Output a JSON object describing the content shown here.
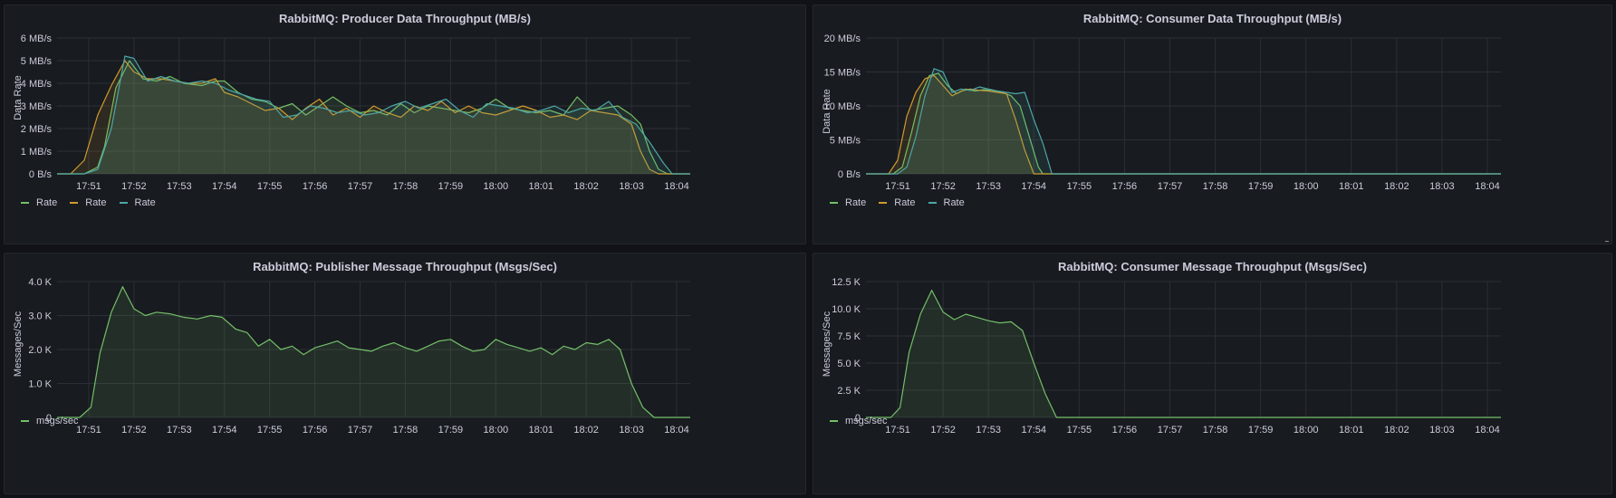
{
  "colors": {
    "green": "#73bf69",
    "orange": "#cf9a2e",
    "teal": "#4ca6a6",
    "grid": "#2c2f36"
  },
  "panels": [
    {
      "title": "RabbitMQ: Producer Data Throughput (MB/s)",
      "legend": [
        {
          "label": "Rate",
          "color": "#73bf69"
        },
        {
          "label": "Rate",
          "color": "#cf9a2e"
        },
        {
          "label": "Rate",
          "color": "#4ca6a6"
        }
      ]
    },
    {
      "title": "RabbitMQ: Consumer Data Throughput (MB/s)",
      "legend": [
        {
          "label": "Rate",
          "color": "#73bf69"
        },
        {
          "label": "Rate",
          "color": "#cf9a2e"
        },
        {
          "label": "Rate",
          "color": "#4ca6a6"
        }
      ]
    },
    {
      "title": "RabbitMQ: Publisher Message Throughput (Msgs/Sec)",
      "legend": [
        {
          "label": "msgs/sec",
          "color": "#73bf69"
        }
      ]
    },
    {
      "title": "RabbitMQ: Consumer Message Throughput (Msgs/Sec)",
      "legend": [
        {
          "label": "msgs/sec",
          "color": "#73bf69"
        }
      ]
    }
  ],
  "chart_data": [
    {
      "type": "area",
      "title": "RabbitMQ: Producer Data Throughput (MB/s)",
      "ylabel": "Data Rate",
      "x_unit": "minutes",
      "x_range": [
        17.8,
        18.07
      ],
      "x_ticks": [
        "17:51",
        "17:52",
        "17:53",
        "17:54",
        "17:55",
        "17:56",
        "17:57",
        "17:58",
        "17:59",
        "18:00",
        "18:01",
        "18:02",
        "18:03",
        "18:04"
      ],
      "x_tick_values": [
        1,
        2,
        3,
        4,
        5,
        6,
        7,
        8,
        9,
        10,
        11,
        12,
        13,
        14
      ],
      "y_ticks": [
        "0 B/s",
        "1 MB/s",
        "2 MB/s",
        "3 MB/s",
        "4 MB/s",
        "5 MB/s",
        "6 MB/s"
      ],
      "y_tick_values": [
        0,
        1,
        2,
        3,
        4,
        5,
        6
      ],
      "ylim": [
        0,
        6
      ],
      "xlim": [
        0.3,
        14.3
      ],
      "grid": true,
      "legend_position": "bottom-left",
      "series": [
        {
          "name": "Rate",
          "color": "#73bf69",
          "x": [
            0.3,
            0.9,
            1.2,
            1.35,
            1.6,
            1.9,
            2.2,
            2.5,
            2.8,
            3.1,
            3.5,
            3.8,
            4.0,
            4.3,
            4.6,
            4.9,
            5.2,
            5.5,
            5.8,
            6.1,
            6.4,
            6.7,
            7.0,
            7.3,
            7.6,
            7.9,
            8.2,
            8.5,
            8.8,
            9.1,
            9.4,
            9.7,
            10.0,
            10.3,
            10.6,
            10.9,
            11.2,
            11.5,
            11.8,
            12.1,
            12.4,
            12.7,
            13.0,
            13.2,
            13.4,
            13.6,
            13.8,
            14.3
          ],
          "y": [
            0,
            0,
            0.3,
            1.2,
            3.8,
            5.0,
            4.2,
            4.1,
            4.3,
            4.0,
            3.9,
            4.1,
            4.1,
            3.6,
            3.3,
            3.2,
            2.9,
            3.1,
            2.6,
            3.0,
            3.4,
            3.0,
            2.7,
            2.8,
            2.6,
            3.1,
            2.7,
            3.0,
            2.9,
            2.8,
            2.7,
            2.9,
            3.3,
            2.9,
            2.8,
            2.7,
            2.8,
            2.6,
            3.4,
            2.8,
            2.9,
            3.0,
            2.6,
            2.2,
            1.0,
            0.2,
            0,
            0
          ]
        },
        {
          "name": "Rate",
          "color": "#cf9a2e",
          "x": [
            0.3,
            0.6,
            0.9,
            1.2,
            1.5,
            1.8,
            2.0,
            2.3,
            2.6,
            2.9,
            3.2,
            3.5,
            3.8,
            4.0,
            4.3,
            4.6,
            4.9,
            5.2,
            5.5,
            5.8,
            6.1,
            6.4,
            6.7,
            7.0,
            7.3,
            7.6,
            7.9,
            8.2,
            8.5,
            8.8,
            9.1,
            9.4,
            9.7,
            10.0,
            10.3,
            10.6,
            10.9,
            11.2,
            11.5,
            11.8,
            12.1,
            12.4,
            12.7,
            13.0,
            13.2,
            13.4,
            13.6,
            13.8,
            14.3
          ],
          "y": [
            0,
            0,
            0.6,
            2.6,
            3.9,
            5.0,
            4.5,
            4.2,
            4.2,
            4.1,
            4.0,
            4.0,
            4.2,
            3.6,
            3.4,
            3.1,
            2.8,
            2.9,
            2.4,
            2.9,
            3.3,
            2.6,
            2.9,
            2.5,
            3.0,
            2.7,
            2.5,
            3.0,
            2.8,
            3.2,
            2.7,
            3.0,
            2.7,
            2.6,
            2.8,
            3.0,
            2.8,
            2.5,
            2.6,
            2.4,
            2.8,
            2.7,
            2.6,
            2.2,
            1.0,
            0.2,
            0,
            0,
            0
          ]
        },
        {
          "name": "Rate",
          "color": "#4ca6a6",
          "x": [
            0.3,
            0.9,
            1.2,
            1.5,
            1.8,
            2.0,
            2.3,
            2.6,
            2.9,
            3.2,
            3.5,
            3.8,
            4.1,
            4.4,
            4.7,
            5.0,
            5.3,
            5.6,
            5.9,
            6.2,
            6.5,
            6.8,
            7.1,
            7.4,
            7.7,
            8.0,
            8.3,
            8.6,
            8.9,
            9.2,
            9.5,
            9.8,
            10.1,
            10.4,
            10.7,
            11.0,
            11.3,
            11.6,
            11.9,
            12.2,
            12.5,
            12.8,
            13.1,
            13.4,
            13.7,
            13.9,
            14.3
          ],
          "y": [
            0,
            0,
            0.2,
            2.0,
            5.2,
            5.1,
            4.1,
            4.3,
            4.1,
            4.0,
            4.1,
            4.0,
            3.7,
            3.5,
            3.3,
            3.2,
            2.5,
            2.6,
            3.0,
            2.9,
            2.7,
            2.8,
            2.6,
            2.7,
            3.0,
            3.2,
            2.9,
            3.1,
            3.3,
            2.8,
            2.5,
            3.1,
            3.0,
            2.9,
            2.7,
            2.8,
            3.0,
            2.7,
            2.9,
            2.8,
            3.2,
            2.5,
            2.2,
            1.4,
            0.5,
            0,
            0
          ]
        }
      ]
    },
    {
      "type": "area",
      "title": "RabbitMQ: Consumer Data Throughput (MB/s)",
      "ylabel": "Data Rate",
      "x_ticks": [
        "17:51",
        "17:52",
        "17:53",
        "17:54",
        "17:55",
        "17:56",
        "17:57",
        "17:58",
        "17:59",
        "18:00",
        "18:01",
        "18:02",
        "18:03",
        "18:04"
      ],
      "x_tick_values": [
        1,
        2,
        3,
        4,
        5,
        6,
        7,
        8,
        9,
        10,
        11,
        12,
        13,
        14
      ],
      "y_ticks": [
        "0 B/s",
        "5 MB/s",
        "10 MB/s",
        "15 MB/s",
        "20 MB/s"
      ],
      "y_tick_values": [
        0,
        5,
        10,
        15,
        20
      ],
      "ylim": [
        0,
        20
      ],
      "xlim": [
        0.3,
        14.3
      ],
      "grid": true,
      "legend_position": "bottom-left",
      "series": [
        {
          "name": "Rate",
          "color": "#73bf69",
          "x": [
            0.3,
            0.9,
            1.1,
            1.3,
            1.5,
            1.7,
            1.9,
            2.1,
            2.3,
            2.5,
            2.7,
            2.9,
            3.1,
            3.3,
            3.5,
            3.7,
            3.9,
            4.1,
            4.2,
            14.3
          ],
          "y": [
            0,
            0,
            1.0,
            6.0,
            11.5,
            14.5,
            14.8,
            13.0,
            11.8,
            12.5,
            12.2,
            12.4,
            12.3,
            12.0,
            11.5,
            10.0,
            5.5,
            1.0,
            0,
            0
          ]
        },
        {
          "name": "Rate",
          "color": "#cf9a2e",
          "x": [
            0.3,
            0.8,
            1.0,
            1.2,
            1.4,
            1.6,
            1.8,
            2.0,
            2.2,
            2.4,
            2.6,
            2.8,
            3.0,
            3.2,
            3.4,
            3.6,
            3.8,
            4.0,
            4.1,
            14.3
          ],
          "y": [
            0,
            0,
            2.0,
            8.5,
            12.0,
            14.0,
            14.5,
            13.0,
            11.5,
            12.2,
            12.5,
            12.3,
            12.2,
            12.0,
            11.8,
            8.0,
            3.5,
            0,
            0,
            0
          ]
        },
        {
          "name": "Rate",
          "color": "#4ca6a6",
          "x": [
            0.3,
            1.0,
            1.2,
            1.4,
            1.6,
            1.8,
            2.0,
            2.2,
            2.4,
            2.6,
            2.8,
            3.0,
            3.2,
            3.4,
            3.6,
            3.8,
            4.0,
            4.2,
            4.4,
            14.3
          ],
          "y": [
            0,
            0,
            1.0,
            5.5,
            11.5,
            15.5,
            15.0,
            12.0,
            12.5,
            12.3,
            12.8,
            12.5,
            12.2,
            12.0,
            11.8,
            12.0,
            8.0,
            4.5,
            0,
            0
          ]
        }
      ]
    },
    {
      "type": "area",
      "title": "RabbitMQ: Publisher Message Throughput (Msgs/Sec)",
      "ylabel": "Messages/Sec",
      "x_ticks": [
        "17:51",
        "17:52",
        "17:53",
        "17:54",
        "17:55",
        "17:56",
        "17:57",
        "17:58",
        "17:59",
        "18:00",
        "18:01",
        "18:02",
        "18:03",
        "18:04"
      ],
      "x_tick_values": [
        1,
        2,
        3,
        4,
        5,
        6,
        7,
        8,
        9,
        10,
        11,
        12,
        13,
        14
      ],
      "y_ticks": [
        "0",
        "1.0 K",
        "2.0 K",
        "3.0 K",
        "4.0 K"
      ],
      "y_tick_values": [
        0,
        1000,
        2000,
        3000,
        4000
      ],
      "ylim": [
        0,
        4000
      ],
      "xlim": [
        0.3,
        14.3
      ],
      "grid": true,
      "legend_position": "bottom-left",
      "series": [
        {
          "name": "msgs/sec",
          "color": "#73bf69",
          "x": [
            0.3,
            0.8,
            1.05,
            1.25,
            1.5,
            1.75,
            2.0,
            2.25,
            2.5,
            2.8,
            3.1,
            3.4,
            3.7,
            3.95,
            4.25,
            4.5,
            4.75,
            5.0,
            5.25,
            5.5,
            5.75,
            6.0,
            6.25,
            6.5,
            6.75,
            7.0,
            7.25,
            7.5,
            7.75,
            8.0,
            8.25,
            8.5,
            8.75,
            9.0,
            9.25,
            9.5,
            9.75,
            10.0,
            10.25,
            10.5,
            10.75,
            11.0,
            11.25,
            11.5,
            11.75,
            12.0,
            12.25,
            12.5,
            12.75,
            13.0,
            13.25,
            13.5,
            13.75,
            14.0,
            14.3
          ],
          "y": [
            0,
            0,
            300,
            1900,
            3100,
            3850,
            3200,
            3000,
            3100,
            3050,
            2950,
            2900,
            3000,
            2950,
            2600,
            2500,
            2100,
            2300,
            2000,
            2100,
            1850,
            2050,
            2150,
            2250,
            2050,
            2000,
            1950,
            2100,
            2200,
            2050,
            1950,
            2100,
            2250,
            2300,
            2100,
            1950,
            2000,
            2300,
            2150,
            2050,
            1950,
            2050,
            1850,
            2100,
            2000,
            2200,
            2150,
            2300,
            2000,
            1000,
            300,
            0,
            0,
            0,
            0
          ]
        }
      ]
    },
    {
      "type": "area",
      "title": "RabbitMQ: Consumer Message Throughput (Msgs/Sec)",
      "ylabel": "Messages/Sec",
      "x_ticks": [
        "17:51",
        "17:52",
        "17:53",
        "17:54",
        "17:55",
        "17:56",
        "17:57",
        "17:58",
        "17:59",
        "18:00",
        "18:01",
        "18:02",
        "18:03",
        "18:04"
      ],
      "x_tick_values": [
        1,
        2,
        3,
        4,
        5,
        6,
        7,
        8,
        9,
        10,
        11,
        12,
        13,
        14
      ],
      "y_ticks": [
        "0",
        "2.5 K",
        "5.0 K",
        "7.5 K",
        "10.0 K",
        "12.5 K"
      ],
      "y_tick_values": [
        0,
        2500,
        5000,
        7500,
        10000,
        12500
      ],
      "ylim": [
        0,
        12500
      ],
      "xlim": [
        0.3,
        14.3
      ],
      "grid": true,
      "legend_position": "bottom-left",
      "series": [
        {
          "name": "msgs/sec",
          "color": "#73bf69",
          "x": [
            0.3,
            0.85,
            1.05,
            1.25,
            1.5,
            1.75,
            2.0,
            2.25,
            2.5,
            2.75,
            3.0,
            3.25,
            3.5,
            3.75,
            4.0,
            4.25,
            4.5,
            14.3
          ],
          "y": [
            0,
            0,
            900,
            6000,
            9500,
            11700,
            9700,
            9000,
            9500,
            9200,
            8900,
            8700,
            8800,
            8000,
            5000,
            2200,
            0,
            0
          ]
        }
      ]
    }
  ]
}
